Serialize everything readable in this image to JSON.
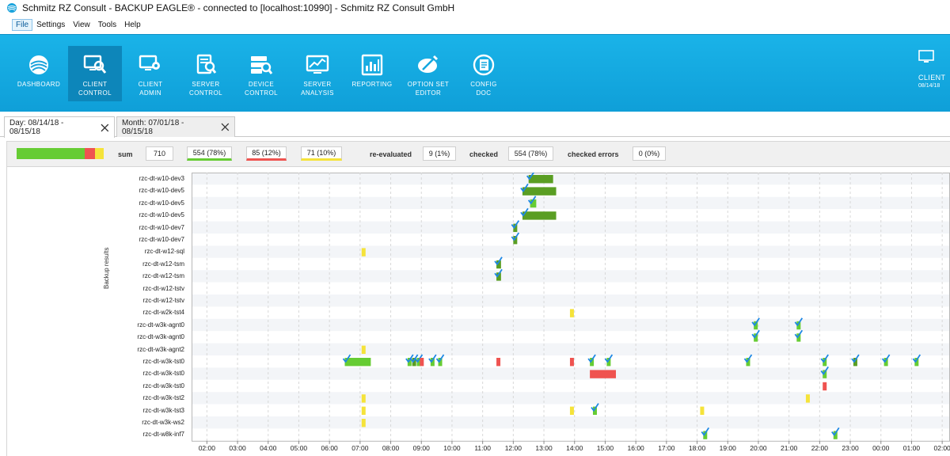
{
  "window": {
    "title": "Schmitz RZ Consult - BACKUP EAGLE® - connected to [localhost:10990] - Schmitz RZ Consult GmbH"
  },
  "menu": [
    {
      "label": "File",
      "active": true
    },
    {
      "label": "Settings"
    },
    {
      "label": "View"
    },
    {
      "label": "Tools"
    },
    {
      "label": "Help"
    }
  ],
  "ribbon": {
    "buttons": [
      {
        "label": "DASHBOARD",
        "icon": "dashboard-icon"
      },
      {
        "label": "CLIENT\nCONTROL",
        "icon": "client-control-icon",
        "selected": true
      },
      {
        "label": "CLIENT\nADMIN",
        "icon": "client-admin-icon"
      },
      {
        "label": "SERVER\nCONTROL",
        "icon": "server-control-icon"
      },
      {
        "label": "DEVICE\nCONTROL",
        "icon": "device-control-icon"
      },
      {
        "label": "SERVER\nANALYSIS",
        "icon": "server-analysis-icon"
      },
      {
        "label": "REPORTING",
        "icon": "reporting-icon"
      },
      {
        "label": "OPTION SET\nEDITOR",
        "icon": "option-set-editor-icon"
      },
      {
        "label": "CONFIG\nDOC",
        "icon": "config-doc-icon"
      }
    ],
    "right_label": "CLIENT",
    "right_date": "08/14/18"
  },
  "tabs": [
    {
      "label": "Day: 08/14/18 - 08/15/18",
      "active": true
    },
    {
      "label": "Month: 07/01/18 - 08/15/18"
    }
  ],
  "summary": {
    "sum_label": "sum",
    "sum_value": "710",
    "ok_value": "554 (78%)",
    "error_value": "85 (12%)",
    "warning_value": "71 (10%)",
    "reevaluated_label": "re-evaluated",
    "reevaluated_value": "9 (1%)",
    "checked_label": "checked",
    "checked_value": "554 (78%)",
    "checked_errors_label": "checked errors",
    "checked_errors_value": "0 (0%)",
    "bar": {
      "ok": 0.78,
      "error": 0.12,
      "warning": 0.1
    }
  },
  "colors": {
    "ok": "#66cc33",
    "ok_dark": "#5a9e23",
    "error": "#ef5350",
    "warning": "#f5e33a",
    "check": "#1e88e5"
  },
  "chart": {
    "y_axis_title": "Backup results",
    "rows": [
      "rzc-dt-w10-dev3",
      "rzc-dt-w10-dev5",
      "rzc-dt-w10-dev5",
      "rzc-dt-w10-dev5",
      "rzc-dt-w10-dev7",
      "rzc-dt-w10-dev7",
      "rzc-dt-w12-sql",
      "rzc-dt-w12-tsm",
      "rzc-dt-w12-tsm",
      "rzc-dt-w12-tstv",
      "rzc-dt-w12-tstv",
      "rzc-dt-w2k-tst4",
      "rzc-dt-w3k-agnt0",
      "rzc-dt-w3k-agnt0",
      "rzc-dt-w3k-agnt2",
      "rzc-dt-w3k-tst0",
      "rzc-dt-w3k-tst0",
      "rzc-dt-w3k-tst0",
      "rzc-dt-w3k-tst2",
      "rzc-dt-w3k-tst3",
      "rzc-dt-w3k-ws2",
      "rzc-dt-w8k-inf7"
    ],
    "x_ticks": [
      "02:00",
      "03:00",
      "04:00",
      "05:00",
      "06:00",
      "07:00",
      "08:00",
      "09:00",
      "10:00",
      "11:00",
      "12:00",
      "13:00",
      "14:00",
      "15:00",
      "16:00",
      "17:00",
      "18:00",
      "19:00",
      "20:00",
      "21:00",
      "22:00",
      "23:00",
      "00:00",
      "01:00",
      "02:00"
    ],
    "x_start_hour": 1.5,
    "events": [
      {
        "row": 0,
        "start": 12.5,
        "end": 13.3,
        "status": "ok_dark",
        "checked": true
      },
      {
        "row": 1,
        "start": 12.3,
        "end": 13.4,
        "status": "ok_dark",
        "checked": true
      },
      {
        "row": 2,
        "start": 12.55,
        "end": 12.75,
        "status": "ok",
        "checked": true
      },
      {
        "row": 3,
        "start": 12.3,
        "end": 13.4,
        "status": "ok_dark",
        "checked": true
      },
      {
        "row": 4,
        "start": 12.0,
        "end": 12.1,
        "status": "ok_dark",
        "checked": true
      },
      {
        "row": 5,
        "start": 12.0,
        "end": 12.1,
        "status": "ok_dark",
        "checked": true
      },
      {
        "row": 6,
        "start": 7.05,
        "end": 7.15,
        "status": "warning",
        "checked": false
      },
      {
        "row": 7,
        "start": 11.45,
        "end": 11.6,
        "status": "ok_dark",
        "checked": true
      },
      {
        "row": 8,
        "start": 11.45,
        "end": 11.6,
        "status": "ok_dark",
        "checked": true
      },
      {
        "row": 11,
        "start": 13.85,
        "end": 13.95,
        "status": "warning",
        "checked": false
      },
      {
        "row": 12,
        "start": 19.85,
        "end": 19.95,
        "status": "ok",
        "checked": true
      },
      {
        "row": 12,
        "start": 21.25,
        "end": 21.35,
        "status": "ok",
        "checked": true
      },
      {
        "row": 13,
        "start": 19.85,
        "end": 19.95,
        "status": "ok",
        "checked": true
      },
      {
        "row": 13,
        "start": 21.25,
        "end": 21.35,
        "status": "ok",
        "checked": true
      },
      {
        "row": 14,
        "start": 7.05,
        "end": 7.15,
        "status": "warning",
        "checked": false
      },
      {
        "row": 15,
        "start": 6.5,
        "end": 7.35,
        "status": "ok",
        "checked": true
      },
      {
        "row": 15,
        "start": 8.55,
        "end": 8.65,
        "status": "ok",
        "checked": true
      },
      {
        "row": 15,
        "start": 8.7,
        "end": 8.8,
        "status": "ok_dark",
        "checked": true
      },
      {
        "row": 15,
        "start": 8.85,
        "end": 8.95,
        "status": "ok",
        "checked": true
      },
      {
        "row": 15,
        "start": 8.95,
        "end": 9.05,
        "status": "error",
        "checked": false
      },
      {
        "row": 15,
        "start": 9.3,
        "end": 9.4,
        "status": "ok",
        "checked": true
      },
      {
        "row": 15,
        "start": 9.55,
        "end": 9.65,
        "status": "ok",
        "checked": true
      },
      {
        "row": 15,
        "start": 11.45,
        "end": 11.55,
        "status": "error",
        "checked": false
      },
      {
        "row": 15,
        "start": 13.85,
        "end": 13.95,
        "status": "error",
        "checked": false
      },
      {
        "row": 15,
        "start": 14.5,
        "end": 14.6,
        "status": "ok",
        "checked": true
      },
      {
        "row": 15,
        "start": 15.05,
        "end": 15.15,
        "status": "ok",
        "checked": true
      },
      {
        "row": 15,
        "start": 19.6,
        "end": 19.7,
        "status": "ok",
        "checked": true
      },
      {
        "row": 15,
        "start": 22.1,
        "end": 22.2,
        "status": "ok",
        "checked": true
      },
      {
        "row": 15,
        "start": 23.1,
        "end": 23.2,
        "status": "ok_dark",
        "checked": true
      },
      {
        "row": 15,
        "start": 24.1,
        "end": 24.2,
        "status": "ok",
        "checked": true
      },
      {
        "row": 15,
        "start": 25.1,
        "end": 25.2,
        "status": "ok",
        "checked": true
      },
      {
        "row": 16,
        "start": 14.5,
        "end": 15.35,
        "status": "error",
        "checked": false
      },
      {
        "row": 16,
        "start": 22.1,
        "end": 22.2,
        "status": "ok",
        "checked": true
      },
      {
        "row": 17,
        "start": 22.1,
        "end": 22.2,
        "status": "error",
        "checked": false
      },
      {
        "row": 18,
        "start": 7.05,
        "end": 7.15,
        "status": "warning",
        "checked": false
      },
      {
        "row": 18,
        "start": 21.55,
        "end": 21.65,
        "status": "warning",
        "checked": false
      },
      {
        "row": 19,
        "start": 7.05,
        "end": 7.15,
        "status": "warning",
        "checked": false
      },
      {
        "row": 19,
        "start": 13.85,
        "end": 13.95,
        "status": "warning",
        "checked": false
      },
      {
        "row": 19,
        "start": 14.6,
        "end": 14.7,
        "status": "ok",
        "checked": true
      },
      {
        "row": 19,
        "start": 18.1,
        "end": 18.2,
        "status": "warning",
        "checked": false
      },
      {
        "row": 20,
        "start": 7.05,
        "end": 7.15,
        "status": "warning",
        "checked": false
      },
      {
        "row": 21,
        "start": 18.2,
        "end": 18.3,
        "status": "ok",
        "checked": true
      },
      {
        "row": 21,
        "start": 22.45,
        "end": 22.55,
        "status": "ok",
        "checked": true
      }
    ]
  }
}
